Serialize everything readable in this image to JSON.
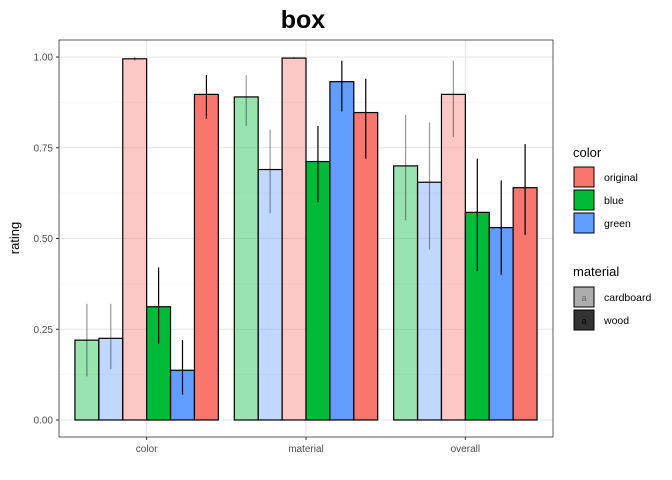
{
  "chart_data": {
    "type": "bar",
    "title": "box",
    "xlabel": "",
    "ylabel": "rating",
    "ylim": [
      0,
      1.05
    ],
    "yticks": [
      0.0,
      0.25,
      0.5,
      0.75,
      1.0
    ],
    "ytick_labels": [
      "0.00",
      "0.25",
      "0.50",
      "0.75",
      "1.00"
    ],
    "categories": [
      "color",
      "material",
      "overall"
    ],
    "grid": true,
    "legend_placement": "right",
    "color_legend": {
      "title": "color",
      "entries": [
        {
          "label": "original",
          "color": "#F8766D"
        },
        {
          "label": "blue",
          "color": "#00BA38"
        },
        {
          "label": "green",
          "color": "#619CFF"
        }
      ]
    },
    "material_legend": {
      "title": "material",
      "entries": [
        {
          "label": "cardboard",
          "alpha": 0.4
        },
        {
          "label": "wood",
          "alpha": 1.0
        }
      ]
    },
    "key_glyph": "a",
    "series": [
      {
        "color": "#00BA38",
        "material": "cardboard",
        "alpha": 0.4,
        "values": [
          0.22,
          0.89,
          0.7
        ],
        "err_low": [
          0.12,
          0.81,
          0.55
        ],
        "err_high": [
          0.32,
          0.95,
          0.84
        ]
      },
      {
        "color": "#619CFF",
        "material": "cardboard",
        "alpha": 0.4,
        "values": [
          0.225,
          0.69,
          0.655
        ],
        "err_low": [
          0.14,
          0.57,
          0.47
        ],
        "err_high": [
          0.32,
          0.8,
          0.82
        ]
      },
      {
        "color": "#F8766D",
        "material": "cardboard",
        "alpha": 0.4,
        "values": [
          0.995,
          0.997,
          0.897
        ],
        "err_low": [
          0.99,
          0.995,
          0.78
        ],
        "err_high": [
          1.0,
          1.0,
          0.99
        ]
      },
      {
        "color": "#00BA38",
        "material": "wood",
        "alpha": 1.0,
        "values": [
          0.312,
          0.712,
          0.572
        ],
        "err_low": [
          0.21,
          0.6,
          0.41
        ],
        "err_high": [
          0.42,
          0.81,
          0.72
        ]
      },
      {
        "color": "#619CFF",
        "material": "wood",
        "alpha": 1.0,
        "values": [
          0.137,
          0.932,
          0.53
        ],
        "err_low": [
          0.07,
          0.85,
          0.4
        ],
        "err_high": [
          0.22,
          0.99,
          0.66
        ]
      },
      {
        "color": "#F8766D",
        "material": "wood",
        "alpha": 1.0,
        "values": [
          0.897,
          0.847,
          0.64
        ],
        "err_low": [
          0.83,
          0.72,
          0.51
        ],
        "err_high": [
          0.95,
          0.94,
          0.76
        ]
      }
    ]
  }
}
